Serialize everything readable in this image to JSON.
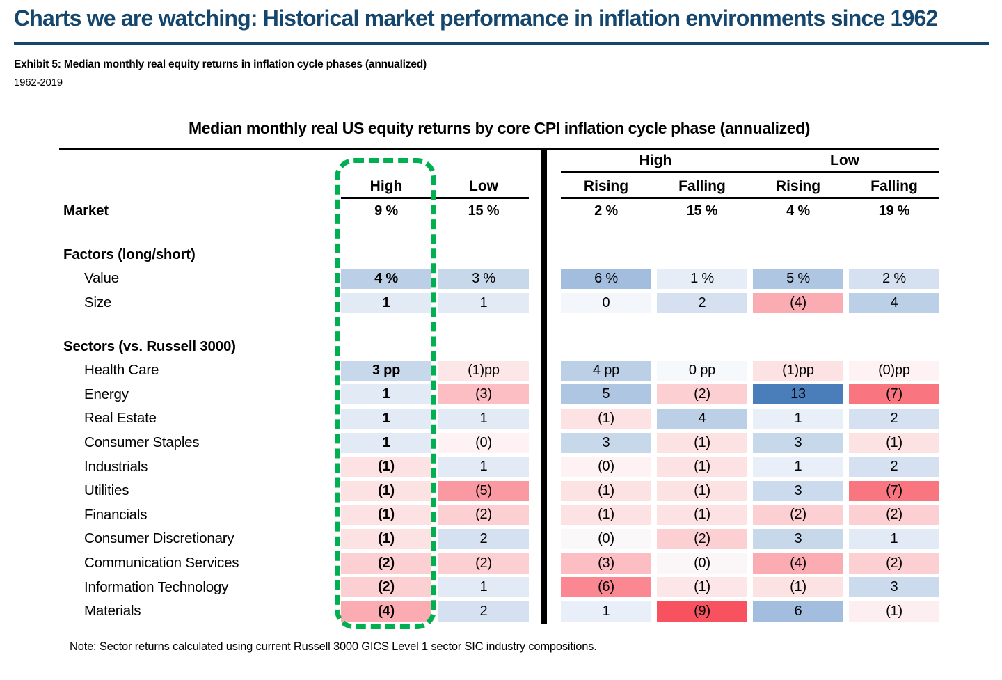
{
  "page": {
    "title": "Charts we are watching: Historical market performance in inflation environments since 1962",
    "exhibit_caption": "Exhibit 5: Median monthly real equity returns in inflation cycle phases (annualized)",
    "exhibit_period": "1962-2019",
    "note": "Note: Sector returns calculated using current Russell 3000 GICS Level 1 sector SIC industry compositions."
  },
  "colors": {
    "title_navy": "#14466e",
    "highlight_green": "#00b050",
    "positive_max_blue": "#4a7ebb",
    "negative_max_red": "#f8515f"
  },
  "table": {
    "title": "Median monthly real US equity returns by core CPI inflation cycle phase (annualized)",
    "left_headers": [
      "High",
      "Low"
    ],
    "right_groups": [
      "High",
      "Low"
    ],
    "right_subheaders": [
      "Rising",
      "Falling",
      "Rising",
      "Falling"
    ],
    "highlight": {
      "target": "High column (left section)",
      "style": "green dashed rounded box",
      "color": "#00b050"
    },
    "rows": [
      {
        "type": "data",
        "label": "Market",
        "bold": true,
        "cells": [
          {
            "d": "9 %",
            "b": true
          },
          {
            "d": "15 %",
            "b": true
          },
          {
            "d": "2 %",
            "b": true
          },
          {
            "d": "15 %",
            "b": true
          },
          {
            "d": "4 %",
            "b": true
          },
          {
            "d": "19 %",
            "b": true
          }
        ]
      },
      {
        "type": "spacer"
      },
      {
        "type": "section",
        "label": "Factors (long/short)"
      },
      {
        "type": "data",
        "label": "Value",
        "indent": true,
        "cells": [
          {
            "d": "4 %",
            "b": true,
            "bg": "#bbcfe6"
          },
          {
            "d": "3 %",
            "bg": "#c8d8eb"
          },
          {
            "d": "6 %",
            "bg": "#a2bddd"
          },
          {
            "d": "1 %",
            "bg": "#e6edf7"
          },
          {
            "d": "5 %",
            "bg": "#afc6e2"
          },
          {
            "d": "2 %",
            "bg": "#d5e1f0"
          }
        ]
      },
      {
        "type": "data",
        "label": "Size",
        "indent": true,
        "cells": [
          {
            "d": "1",
            "b": true,
            "bg": "#e2eaf5"
          },
          {
            "d": "1",
            "bg": "#e2eaf5"
          },
          {
            "d": "0",
            "bg": "#f3f7fb"
          },
          {
            "d": "2",
            "bg": "#d5e1f0"
          },
          {
            "d": "(4)",
            "bg": "#fbabb2"
          },
          {
            "d": "4",
            "bg": "#bbcfe6"
          }
        ]
      },
      {
        "type": "spacer"
      },
      {
        "type": "section",
        "label": "Sectors (vs. Russell 3000)"
      },
      {
        "type": "data",
        "label": "Health Care",
        "indent": true,
        "cells": [
          {
            "d": "3 pp",
            "b": true,
            "bg": "#c8d8eb"
          },
          {
            "d": "(1)pp",
            "bg": "#fde6e8"
          },
          {
            "d": "4 pp",
            "bg": "#bbcfe6"
          },
          {
            "d": "0 pp",
            "bg": "#f6f9fc"
          },
          {
            "d": "(1)pp",
            "bg": "#fde2e4"
          },
          {
            "d": "(0)pp",
            "bg": "#fef2f4"
          }
        ]
      },
      {
        "type": "data",
        "label": "Energy",
        "indent": true,
        "cells": [
          {
            "d": "1",
            "b": true,
            "bg": "#e2eaf5"
          },
          {
            "d": "(3)",
            "bg": "#fcbdc3"
          },
          {
            "d": "5",
            "bg": "#afc6e2"
          },
          {
            "d": "(2)",
            "bg": "#fccfd3"
          },
          {
            "d": "13",
            "bg": "#4a7ebb"
          },
          {
            "d": "(7)",
            "bg": "#f97580"
          }
        ]
      },
      {
        "type": "data",
        "label": "Real Estate",
        "indent": true,
        "cells": [
          {
            "d": "1",
            "b": true,
            "bg": "#e2eaf5"
          },
          {
            "d": "1",
            "bg": "#e2eaf5"
          },
          {
            "d": "(1)",
            "bg": "#fde2e4"
          },
          {
            "d": "4",
            "bg": "#bbcfe6"
          },
          {
            "d": "1",
            "bg": "#e9eff8"
          },
          {
            "d": "2",
            "bg": "#d5e1f0"
          }
        ]
      },
      {
        "type": "data",
        "label": "Consumer Staples",
        "indent": true,
        "cells": [
          {
            "d": "1",
            "b": true,
            "bg": "#e2eaf5"
          },
          {
            "d": "(0)",
            "bg": "#fef2f4"
          },
          {
            "d": "3",
            "bg": "#c8d8eb"
          },
          {
            "d": "(1)",
            "bg": "#fde2e4"
          },
          {
            "d": "3",
            "bg": "#c8d8eb"
          },
          {
            "d": "(1)",
            "bg": "#fde2e4"
          }
        ]
      },
      {
        "type": "data",
        "label": "Industrials",
        "indent": true,
        "cells": [
          {
            "d": "(1)",
            "b": true,
            "bg": "#fde2e4"
          },
          {
            "d": "1",
            "bg": "#e2eaf5"
          },
          {
            "d": "(0)",
            "bg": "#fef2f4"
          },
          {
            "d": "(1)",
            "bg": "#fde2e4"
          },
          {
            "d": "1",
            "bg": "#e9eff8"
          },
          {
            "d": "2",
            "bg": "#d5e1f0"
          }
        ]
      },
      {
        "type": "data",
        "label": "Utilities",
        "indent": true,
        "cells": [
          {
            "d": "(1)",
            "b": true,
            "bg": "#fde2e4"
          },
          {
            "d": "(5)",
            "bg": "#fa99a1"
          },
          {
            "d": "(1)",
            "bg": "#fde2e4"
          },
          {
            "d": "(1)",
            "bg": "#fde2e4"
          },
          {
            "d": "3",
            "bg": "#ccdaee"
          },
          {
            "d": "(7)",
            "bg": "#f97580"
          }
        ]
      },
      {
        "type": "data",
        "label": "Financials",
        "indent": true,
        "cells": [
          {
            "d": "(1)",
            "b": true,
            "bg": "#fde2e4"
          },
          {
            "d": "(2)",
            "bg": "#fccfd3"
          },
          {
            "d": "(1)",
            "bg": "#fde2e4"
          },
          {
            "d": "(1)",
            "bg": "#fde2e4"
          },
          {
            "d": "(2)",
            "bg": "#fccfd3"
          },
          {
            "d": "(2)",
            "bg": "#fccfd3"
          }
        ]
      },
      {
        "type": "data",
        "label": "Consumer Discretionary",
        "indent": true,
        "cells": [
          {
            "d": "(1)",
            "b": true,
            "bg": "#fde2e4"
          },
          {
            "d": "2",
            "bg": "#d5e1f0"
          },
          {
            "d": "(0)",
            "bg": "#fbf8f9"
          },
          {
            "d": "(2)",
            "bg": "#fccfd3"
          },
          {
            "d": "3",
            "bg": "#c8d8eb"
          },
          {
            "d": "1",
            "bg": "#e2eaf5"
          }
        ]
      },
      {
        "type": "data",
        "label": "Communication Services",
        "indent": true,
        "cells": [
          {
            "d": "(2)",
            "b": true,
            "bg": "#fccfd3"
          },
          {
            "d": "(2)",
            "bg": "#fccfd3"
          },
          {
            "d": "(3)",
            "bg": "#fcbdc3"
          },
          {
            "d": "(0)",
            "bg": "#fbf6f7"
          },
          {
            "d": "(4)",
            "bg": "#fbabb2"
          },
          {
            "d": "(2)",
            "bg": "#fccfd3"
          }
        ]
      },
      {
        "type": "data",
        "label": "Information Technology",
        "indent": true,
        "cells": [
          {
            "d": "(2)",
            "b": true,
            "bg": "#fccfd3"
          },
          {
            "d": "1",
            "bg": "#e2eaf5"
          },
          {
            "d": "(6)",
            "bg": "#fa8791"
          },
          {
            "d": "(1)",
            "bg": "#fde6e8"
          },
          {
            "d": "(1)",
            "bg": "#fde2e4"
          },
          {
            "d": "3",
            "bg": "#ccdaee"
          }
        ]
      },
      {
        "type": "data",
        "label": "Materials",
        "indent": true,
        "cells": [
          {
            "d": "(4)",
            "b": true,
            "bg": "#fbabb2"
          },
          {
            "d": "2",
            "bg": "#d5e1f0"
          },
          {
            "d": "1",
            "bg": "#e9eff8"
          },
          {
            "d": "(9)",
            "bg": "#f8515f"
          },
          {
            "d": "6",
            "bg": "#a2bddd"
          },
          {
            "d": "(1)",
            "bg": "#fdeff1"
          }
        ]
      }
    ]
  },
  "chart_data": {
    "type": "heatmap",
    "title": "Median monthly real US equity returns by core CPI inflation cycle phase (annualized)",
    "period": "1962-2019",
    "columns": [
      "High",
      "Low",
      "High Rising",
      "High Falling",
      "Low Rising",
      "Low Falling"
    ],
    "column_groups": {
      "left": [
        "High",
        "Low"
      ],
      "right": [
        {
          "group": "High",
          "subcolumns": [
            "Rising",
            "Falling"
          ]
        },
        {
          "group": "Low",
          "subcolumns": [
            "Rising",
            "Falling"
          ]
        }
      ]
    },
    "negative_in_parentheses": true,
    "units": {
      "Market": "%",
      "Value": "%",
      "sectors": "pp (vs. Russell 3000)"
    },
    "rows": [
      {
        "label": "Market",
        "values": [
          9,
          15,
          2,
          15,
          4,
          19
        ]
      },
      {
        "label": "Value",
        "group": "Factors (long/short)",
        "values": [
          4,
          3,
          6,
          1,
          5,
          2
        ]
      },
      {
        "label": "Size",
        "group": "Factors (long/short)",
        "values": [
          1,
          1,
          0,
          2,
          -4,
          4
        ]
      },
      {
        "label": "Health Care",
        "group": "Sectors (vs. Russell 3000)",
        "values": [
          3,
          -1,
          4,
          0,
          -1,
          0
        ]
      },
      {
        "label": "Energy",
        "group": "Sectors (vs. Russell 3000)",
        "values": [
          1,
          -3,
          5,
          -2,
          13,
          -7
        ]
      },
      {
        "label": "Real Estate",
        "group": "Sectors (vs. Russell 3000)",
        "values": [
          1,
          1,
          -1,
          4,
          1,
          2
        ]
      },
      {
        "label": "Consumer Staples",
        "group": "Sectors (vs. Russell 3000)",
        "values": [
          1,
          0,
          3,
          -1,
          3,
          -1
        ]
      },
      {
        "label": "Industrials",
        "group": "Sectors (vs. Russell 3000)",
        "values": [
          -1,
          1,
          0,
          -1,
          1,
          2
        ]
      },
      {
        "label": "Utilities",
        "group": "Sectors (vs. Russell 3000)",
        "values": [
          -1,
          -5,
          -1,
          -1,
          3,
          -7
        ]
      },
      {
        "label": "Financials",
        "group": "Sectors (vs. Russell 3000)",
        "values": [
          -1,
          -2,
          -1,
          -1,
          -2,
          -2
        ]
      },
      {
        "label": "Consumer Discretionary",
        "group": "Sectors (vs. Russell 3000)",
        "values": [
          -1,
          2,
          0,
          -2,
          3,
          1
        ]
      },
      {
        "label": "Communication Services",
        "group": "Sectors (vs. Russell 3000)",
        "values": [
          -2,
          -2,
          -3,
          0,
          -4,
          -2
        ]
      },
      {
        "label": "Information Technology",
        "group": "Sectors (vs. Russell 3000)",
        "values": [
          -2,
          1,
          -6,
          -1,
          -1,
          3
        ]
      },
      {
        "label": "Materials",
        "group": "Sectors (vs. Russell 3000)",
        "values": [
          -4,
          2,
          1,
          -9,
          6,
          -1
        ]
      }
    ],
    "color_scale": {
      "positive_max": "#4a7ebb",
      "negative_max": "#f8515f",
      "near_zero": "#ffffff"
    },
    "legend_position": "none",
    "annotation": "Green dashed box highlights the left-section High column"
  }
}
